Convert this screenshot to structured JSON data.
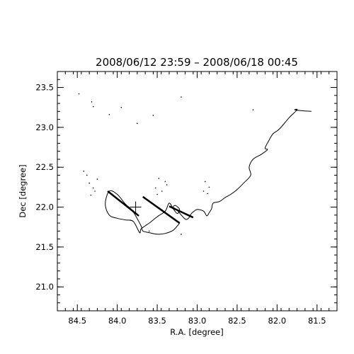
{
  "chart_data": {
    "type": "line",
    "title": "2008/06/12 23:59 – 2008/06/18 00:45",
    "xlabel": "R.A. [degree]",
    "ylabel": "Dec [degree]",
    "xlim": [
      84.75,
      81.25
    ],
    "ylim": [
      20.7,
      23.7
    ],
    "x_reversed": true,
    "grid": false,
    "x_ticks": [
      84.5,
      84.0,
      83.5,
      83.0,
      82.5,
      82.0,
      81.5
    ],
    "x_tick_labels": [
      "84.5",
      "84.0",
      "83.5",
      "83.0",
      "82.5",
      "82.0",
      "81.5"
    ],
    "y_ticks": [
      21.0,
      21.5,
      22.0,
      22.5,
      23.0,
      23.5
    ],
    "y_tick_labels": [
      "21.0",
      "21.5",
      "22.0",
      "22.5",
      "23.0",
      "23.5"
    ],
    "line_color": "#000000",
    "marker": {
      "x": 83.77,
      "y": 22.0,
      "symbol": "plus"
    },
    "track": {
      "x": [
        81.57,
        81.7,
        81.78,
        81.75,
        81.85,
        81.97,
        82.05,
        82.1,
        82.15,
        82.12,
        82.2,
        82.3,
        82.35,
        82.33,
        82.42,
        82.5,
        82.58,
        82.65,
        82.72,
        82.8,
        82.82,
        82.85,
        82.88,
        82.92,
        83.0,
        83.05,
        83.08,
        83.1,
        83.15,
        83.25,
        83.3,
        83.27,
        83.22,
        83.25,
        83.3,
        83.35,
        83.4,
        83.5,
        83.6,
        83.7,
        83.72,
        83.8,
        83.9,
        84.0,
        84.1,
        84.15,
        84.1,
        84.0,
        83.9,
        83.82,
        83.77,
        83.7,
        83.68,
        83.6,
        83.5,
        83.4,
        83.3,
        83.22
      ],
      "y": [
        23.2,
        23.21,
        23.22,
        23.22,
        23.12,
        22.98,
        22.92,
        22.84,
        22.74,
        22.72,
        22.66,
        22.6,
        22.5,
        22.4,
        22.3,
        22.22,
        22.16,
        22.12,
        22.07,
        22.05,
        21.98,
        21.93,
        21.89,
        21.95,
        21.97,
        21.94,
        21.91,
        21.87,
        21.85,
        21.96,
        22.0,
        22.02,
        21.97,
        21.92,
        21.98,
        22.05,
        21.95,
        21.88,
        21.8,
        21.73,
        21.68,
        21.82,
        21.84,
        21.86,
        21.9,
        22.04,
        22.2,
        22.16,
        22.04,
        21.97,
        21.89,
        21.76,
        21.7,
        21.68,
        21.66,
        21.67,
        21.71,
        21.8
      ]
    },
    "diagonal_segments": [
      {
        "x": [
          84.12,
          83.73
        ],
        "y": [
          22.2,
          21.89
        ]
      },
      {
        "x": [
          83.68,
          83.22
        ],
        "y": [
          22.13,
          21.8
        ]
      },
      {
        "x": [
          83.35,
          83.05
        ],
        "y": [
          22.01,
          21.87
        ]
      }
    ],
    "scatter_points": {
      "x": [
        84.48,
        84.32,
        84.1,
        84.3,
        83.75,
        83.2,
        83.95,
        83.55,
        82.3,
        83.48,
        83.4,
        83.52,
        83.44,
        83.38,
        83.5,
        84.38,
        84.42,
        84.35,
        84.3,
        84.28,
        84.33,
        84.25,
        82.9,
        82.85,
        82.92,
        82.87,
        83.6,
        83.2
      ],
      "y": [
        23.42,
        23.32,
        23.16,
        23.26,
        23.05,
        23.38,
        23.25,
        23.15,
        23.22,
        22.36,
        22.32,
        22.24,
        22.2,
        22.28,
        22.16,
        22.4,
        22.45,
        22.3,
        22.24,
        22.2,
        22.15,
        22.35,
        22.32,
        22.25,
        22.2,
        22.17,
        21.7,
        21.66
      ]
    }
  }
}
